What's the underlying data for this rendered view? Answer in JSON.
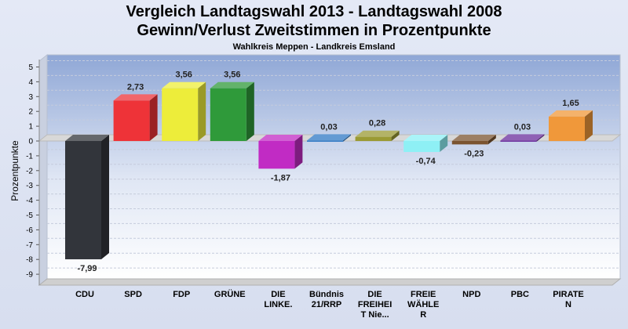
{
  "chart_data": {
    "type": "bar",
    "title": "Vergleich Landtagswahl 2013 - Landtagswahl 2008",
    "subtitle_line": "Gewinn/Verlust Zweitstimmen in Prozentpunkte",
    "subtitle": "Wahlkreis Meppen - Landkreis Emsland",
    "ylabel": "Prozentpunkte",
    "xlabel": "",
    "ylim": [
      -9.5,
      5.5
    ],
    "yticks": [
      5,
      4,
      3,
      2,
      1,
      0,
      -1,
      -2,
      -3,
      -4,
      -5,
      -6,
      -7,
      -8,
      -9
    ],
    "grid": true,
    "categories": [
      [
        "CDU"
      ],
      [
        "SPD"
      ],
      [
        "FDP"
      ],
      [
        "GRÜNE"
      ],
      [
        "DIE",
        "LINKE."
      ],
      [
        "Bündnis",
        "21/RRP"
      ],
      [
        "DIE",
        "FREIHEI",
        "T Nie..."
      ],
      [
        "FREIE",
        "WÄHLE",
        "R"
      ],
      [
        "NPD"
      ],
      [
        "PBC"
      ],
      [
        "PIRATE",
        "N"
      ]
    ],
    "values": [
      -7.99,
      2.73,
      3.56,
      3.56,
      -1.87,
      0.03,
      0.28,
      -0.74,
      -0.23,
      0.03,
      1.65
    ],
    "value_labels": [
      "-7,99",
      "2,73",
      "3,56",
      "3,56",
      "-1,87",
      "0,03",
      "0,28",
      "-0,74",
      "-0,23",
      "0,03",
      "1,65"
    ],
    "colors": [
      "#32353b",
      "#ee3338",
      "#eded3a",
      "#2f9a3a",
      "#c12bc4",
      "#2f78c4",
      "#9a9a34",
      "#8ef0f5",
      "#7b5430",
      "#6a2c9c",
      "#f0983a"
    ]
  }
}
